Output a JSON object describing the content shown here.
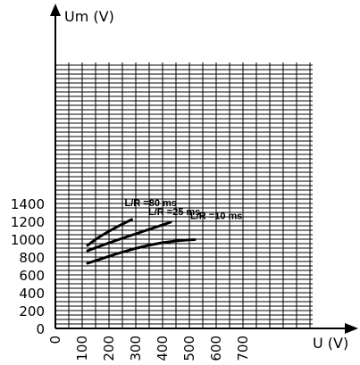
{
  "chart_data": {
    "type": "line",
    "xlabel": "U (V)",
    "ylabel": "Um (V)",
    "xlim": [
      0,
      1000
    ],
    "ylim": [
      0,
      1500
    ],
    "x_ticks": [
      0,
      100,
      200,
      300,
      400,
      500,
      600,
      700
    ],
    "y_ticks": [
      0,
      200,
      400,
      600,
      800,
      1000,
      1200,
      1400
    ],
    "grid": true,
    "series": [
      {
        "name": "L/R =80 ms",
        "x": [
          120,
          150,
          200,
          250,
          285
        ],
        "y": [
          930,
          1000,
          1090,
          1170,
          1220
        ]
      },
      {
        "name": "L/R =25 ms",
        "x": [
          120,
          200,
          300,
          400,
          430
        ],
        "y": [
          870,
          960,
          1060,
          1160,
          1190
        ]
      },
      {
        "name": "L/R =10 ms",
        "x": [
          120,
          200,
          300,
          400,
          500,
          520
        ],
        "y": [
          730,
          810,
          900,
          965,
          995,
          995
        ]
      }
    ]
  }
}
